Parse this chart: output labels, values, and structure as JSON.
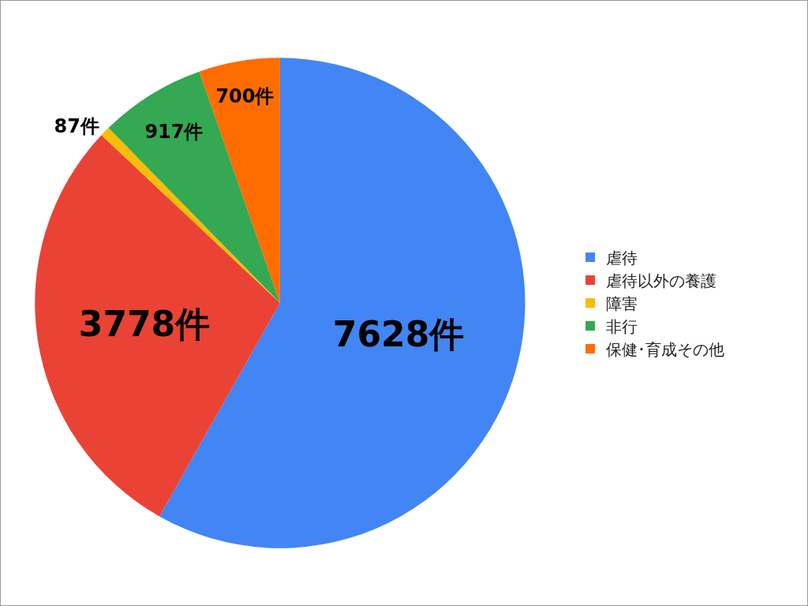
{
  "chart_data": {
    "type": "pie",
    "categories": [
      "虐待",
      "虐待以外の養護",
      "障害",
      "非行",
      "保健･育成その他"
    ],
    "values": [
      7628,
      3778,
      87,
      917,
      700
    ],
    "colors": [
      "#4285f4",
      "#ea4335",
      "#fbbc04",
      "#34a853",
      "#ff6d01"
    ],
    "value_labels": [
      "7628件",
      "3778件",
      "87件",
      "917件",
      "700件"
    ],
    "legend": "right"
  }
}
